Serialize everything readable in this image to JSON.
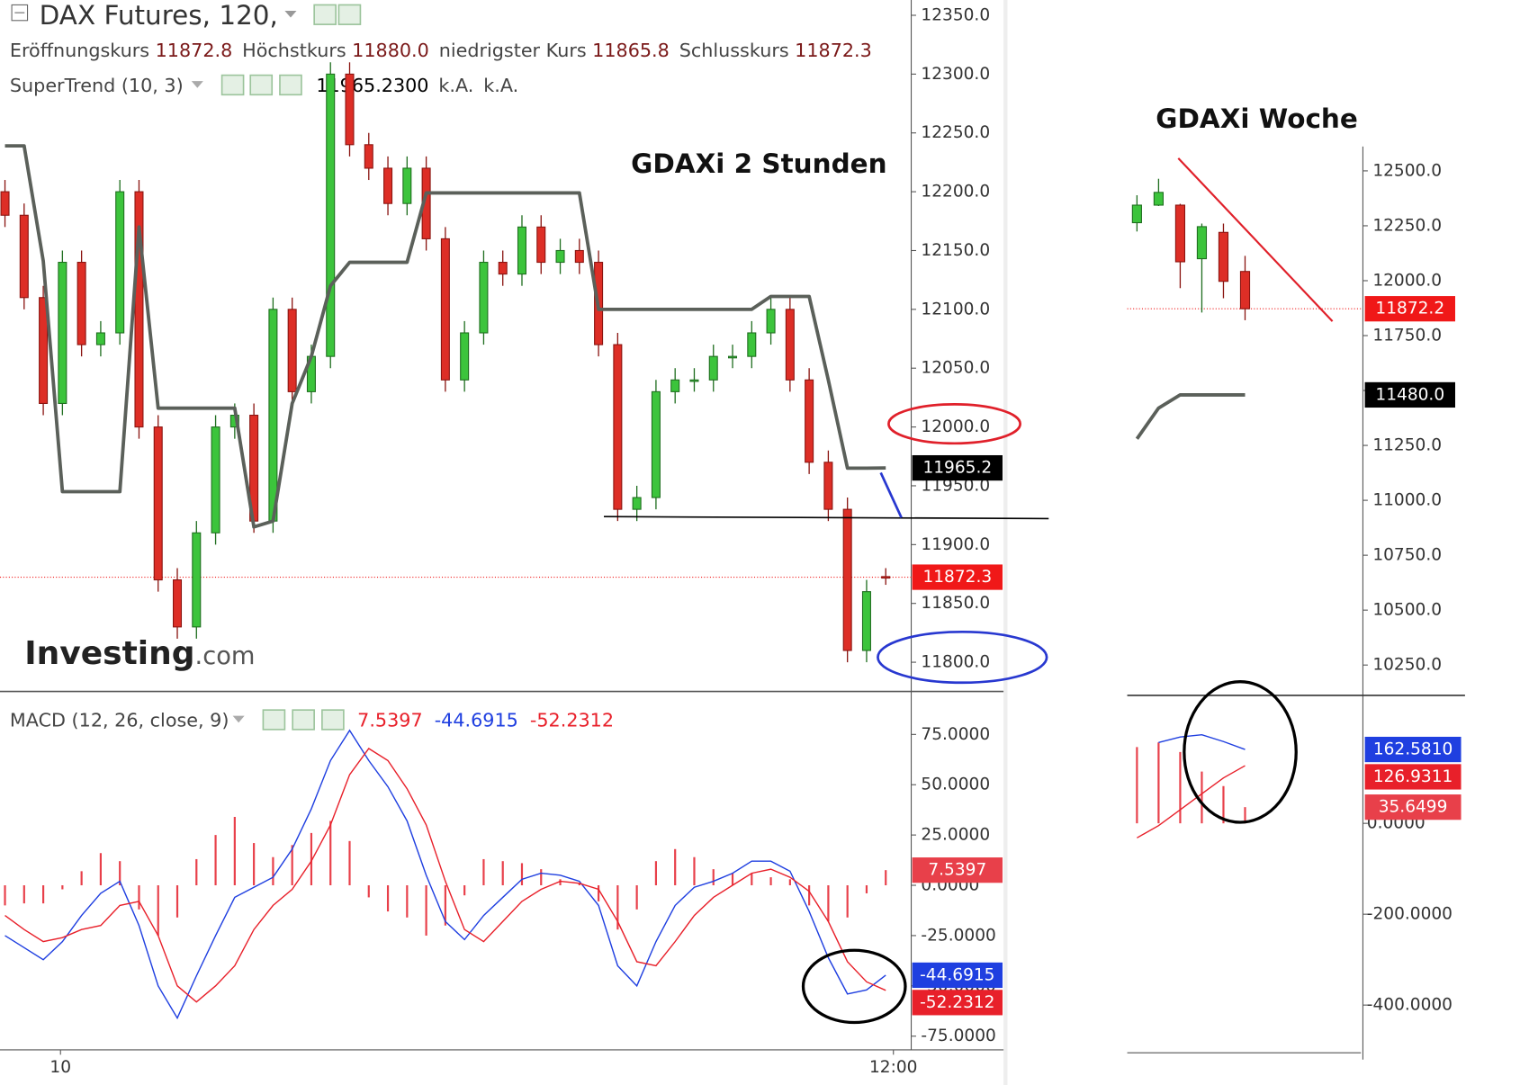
{
  "header": {
    "title": "DAX Futures, 120,",
    "ohlc": [
      {
        "label": "Eröffnungskurs",
        "value": "11872.8"
      },
      {
        "label": "Höchstkurs",
        "value": "11880.0"
      },
      {
        "label": "niedrigster Kurs",
        "value": "11865.8"
      },
      {
        "label": "Schlusskurs",
        "value": "11872.3"
      }
    ],
    "indicator": "SuperTrend (10, 3)",
    "indicator_values": [
      "11965.2300",
      "k.A.",
      "k.A."
    ],
    "macd_title": "MACD (12, 26, close, 9)"
  },
  "logo": {
    "brand": "Investing",
    "suffix": ".com"
  },
  "chart_data": [
    {
      "type": "candlestick",
      "title": "GDAXi 2 Stunden",
      "x": [
        0,
        1,
        2,
        3,
        4,
        5,
        6,
        7,
        8,
        9,
        10,
        11,
        12,
        13,
        14,
        15,
        16,
        17,
        18,
        19,
        20,
        21,
        22,
        23,
        24,
        25,
        26,
        27,
        28,
        29,
        30,
        31,
        32,
        33,
        34,
        35,
        36,
        37,
        38,
        39,
        40,
        41,
        42,
        43,
        44,
        45,
        46
      ],
      "open": [
        12200,
        12180,
        12110,
        12020,
        12140,
        12070,
        12080,
        12200,
        12000,
        11870,
        11830,
        11910,
        12000,
        12010,
        11920,
        12100,
        12030,
        12060,
        12300,
        12240,
        12220,
        12190,
        12220,
        12160,
        12040,
        12080,
        12140,
        12130,
        12170,
        12140,
        12150,
        12140,
        12070,
        11930,
        11940,
        12030,
        12040,
        12040,
        12060,
        12060,
        12080,
        12100,
        12040,
        11970,
        11930,
        11810,
        11872.8
      ],
      "high": [
        12210,
        12190,
        12120,
        12150,
        12150,
        12090,
        12210,
        12210,
        12010,
        11880,
        11920,
        12010,
        12020,
        12020,
        12110,
        12110,
        12070,
        12310,
        12310,
        12250,
        12230,
        12230,
        12230,
        12170,
        12090,
        12150,
        12150,
        12180,
        12180,
        12160,
        12160,
        12150,
        12080,
        11950,
        12040,
        12050,
        12050,
        12070,
        12070,
        12090,
        12110,
        12110,
        12050,
        11980,
        11940,
        11870,
        11880
      ],
      "low": [
        12170,
        12100,
        12010,
        12010,
        12060,
        12060,
        12070,
        11990,
        11860,
        11820,
        11820,
        11900,
        11990,
        11910,
        11910,
        12020,
        12020,
        12050,
        12230,
        12210,
        12180,
        12180,
        12150,
        12030,
        12030,
        12070,
        12120,
        12120,
        12130,
        12130,
        12130,
        12060,
        11920,
        11920,
        11930,
        12020,
        12030,
        12030,
        12050,
        12050,
        12070,
        12030,
        11960,
        11920,
        11800,
        11800,
        11865.8
      ],
      "close": [
        12180,
        12110,
        12020,
        12140,
        12070,
        12080,
        12200,
        12000,
        11870,
        11830,
        11910,
        12000,
        12010,
        11920,
        12100,
        12030,
        12060,
        12300,
        12240,
        12220,
        12190,
        12220,
        12160,
        12040,
        12080,
        12140,
        12130,
        12170,
        12140,
        12150,
        12140,
        12070,
        11930,
        11940,
        12030,
        12040,
        12040,
        12060,
        12060,
        12080,
        12100,
        12040,
        11970,
        11930,
        11810,
        11860,
        11872.3
      ],
      "up_color": "#3cc43c",
      "down_color": "#dd2e26",
      "up_border": "#1f6e1f",
      "down_border": "#8a1410",
      "overlay": {
        "color": "#5b605a",
        "values": [
          12239,
          12239,
          12141,
          11945,
          11945,
          11945,
          11945,
          12170,
          12016,
          12016,
          12016,
          12016,
          12016,
          11915,
          11920,
          12020,
          12060,
          12120,
          12140,
          12140,
          12140,
          12140,
          12199,
          12199,
          12199,
          12199,
          12199,
          12199,
          12199,
          12199,
          12199,
          12100,
          12100,
          12100,
          12100,
          12100,
          12100,
          12100,
          12100,
          12100,
          12111,
          12111,
          12111,
          12040,
          11965,
          11965,
          11965.2
        ]
      },
      "close_tag_color": "#f01818",
      "overlay_tag_color": "#000000",
      "xlim": [
        -0.26,
        47.33
      ],
      "ylim": [
        11776,
        12363
      ],
      "yticks": [
        {
          "value": 12350,
          "label": "12350.0"
        },
        {
          "value": 12300,
          "label": "12300.0"
        },
        {
          "value": 12250,
          "label": "12250.0"
        },
        {
          "value": 12200,
          "label": "12200.0"
        },
        {
          "value": 12150,
          "label": "12150.0"
        },
        {
          "value": 12100,
          "label": "12100.0"
        },
        {
          "value": 12050,
          "label": "12050.0"
        },
        {
          "value": 12000,
          "label": "12000.0"
        },
        {
          "value": 11950,
          "label": "11950.0"
        },
        {
          "value": 11900,
          "label": "11900.0"
        },
        {
          "value": 11850,
          "label": "11850.0"
        },
        {
          "value": 11800,
          "label": "11800.0"
        }
      ]
    },
    {
      "type": "macd",
      "x": [
        0,
        1,
        2,
        3,
        4,
        5,
        6,
        7,
        8,
        9,
        10,
        11,
        12,
        13,
        14,
        15,
        16,
        17,
        18,
        19,
        20,
        21,
        22,
        23,
        24,
        25,
        26,
        27,
        28,
        29,
        30,
        31,
        32,
        33,
        34,
        35,
        36,
        37,
        38,
        39,
        40,
        41,
        42,
        43,
        44,
        45,
        46
      ],
      "series": [
        {
          "kind": "histogram",
          "color": "#e8404a",
          "values": [
            -10,
            -9,
            -9,
            -2,
            7,
            16,
            12,
            -12,
            -25,
            -16,
            13,
            25,
            34,
            21,
            14,
            20,
            26,
            32,
            22,
            -6,
            -13,
            -16,
            -25,
            -20,
            -5,
            13,
            12,
            11,
            8,
            3,
            1,
            -8,
            -22,
            -12,
            12,
            18,
            14,
            8,
            6,
            6,
            4,
            3,
            -10,
            -18,
            -16,
            -4,
            7.5397
          ]
        },
        {
          "kind": "line",
          "color": "#1f3fe0",
          "values": [
            -25,
            -31,
            -37,
            -28,
            -15,
            -4,
            2,
            -20,
            -50,
            -66,
            -45,
            -25,
            -6,
            -1,
            4,
            18,
            38,
            62,
            77,
            62,
            49,
            32,
            5,
            -18,
            -27,
            -15,
            -6,
            3,
            6,
            5,
            2,
            -10,
            -40,
            -50,
            -28,
            -10,
            -1,
            2,
            6,
            12,
            12,
            7,
            -13,
            -36,
            -54,
            -52,
            -44.6915
          ]
        },
        {
          "kind": "line",
          "color": "#e8202a",
          "values": [
            -15,
            -22,
            -28,
            -26,
            -22,
            -20,
            -10,
            -8,
            -25,
            -50,
            -58,
            -50,
            -40,
            -22,
            -10,
            -2,
            12,
            30,
            55,
            68,
            62,
            48,
            30,
            2,
            -22,
            -28,
            -18,
            -8,
            -2,
            2,
            1,
            -2,
            -18,
            -38,
            -40,
            -28,
            -15,
            -6,
            0,
            6,
            8,
            4,
            -3,
            -18,
            -38,
            -48,
            -52.2312
          ]
        }
      ],
      "xlim": [
        -0.26,
        47.33
      ],
      "ylim": [
        -81.8,
        95.4
      ],
      "xticks": [
        {
          "value": 2.9,
          "label": "10"
        },
        {
          "value": 46.4,
          "label": "12:00"
        }
      ],
      "yticks": [
        {
          "value": 75,
          "label": "75.0000"
        },
        {
          "value": 50,
          "label": "50.0000"
        },
        {
          "value": 25,
          "label": "25.0000"
        },
        {
          "value": 0,
          "label": "0.0000"
        },
        {
          "value": -25,
          "label": "-25.0000"
        },
        {
          "value": -50,
          "label": "-50.0000"
        },
        {
          "value": -75,
          "label": "-75.0000"
        }
      ]
    },
    {
      "type": "candlestick",
      "title": "GDAXi Woche",
      "x": [
        0,
        1,
        2,
        3,
        4,
        5
      ],
      "open": [
        12264,
        12344,
        12344,
        12100,
        12220,
        12042
      ],
      "high": [
        12389,
        12464,
        12350,
        12260,
        12260,
        12113
      ],
      "low": [
        12224,
        12340,
        11966,
        11855,
        11920,
        11820
      ],
      "close": [
        12344,
        12402,
        12086,
        12246,
        11997,
        11872.2
      ],
      "up_color": "#3cc43c",
      "down_color": "#dd2e26",
      "up_border": "#1f6e1f",
      "down_border": "#8a1410",
      "overlay": {
        "color": "#5b605a",
        "values": [
          11280,
          11420,
          11480,
          11480,
          11480,
          11480
        ],
        "last_label": "11480.0"
      },
      "close_tag_color": "#f01818",
      "overlay_tag_color": "#000000",
      "xlim": [
        -0.45,
        10.45
      ],
      "ylim": [
        10112,
        12611
      ],
      "yticks": [
        {
          "value": 12500,
          "label": "12500.0"
        },
        {
          "value": 12250,
          "label": "12250.0"
        },
        {
          "value": 12000,
          "label": "12000.0"
        },
        {
          "value": 11750,
          "label": "11750.0"
        },
        {
          "value": 11500,
          "label": "11500.0"
        },
        {
          "value": 11250,
          "label": "11250.0"
        },
        {
          "value": 11000,
          "label": "11000.0"
        },
        {
          "value": 10750,
          "label": "10750.0"
        },
        {
          "value": 10500,
          "label": "10500.0"
        },
        {
          "value": 10250,
          "label": "10250.0"
        }
      ]
    },
    {
      "type": "macd",
      "x": [
        0,
        1,
        2,
        3,
        4,
        5
      ],
      "series": [
        {
          "kind": "histogram",
          "color": "#e8404a",
          "values": [
            168,
            178,
            157,
            114,
            82,
            35.6499
          ],
          "last_label": "35.6499"
        },
        {
          "kind": "line",
          "color": "#1f3fe0",
          "values": [
            null,
            178,
            190,
            195,
            180,
            162.581
          ],
          "last_label": "162.5810"
        },
        {
          "kind": "line",
          "color": "#e8202a",
          "values": [
            -32,
            -5,
            30,
            65,
            100,
            126.9311
          ],
          "last_label": "126.9311"
        }
      ],
      "xlim": [
        -0.45,
        10.45
      ],
      "ylim": [
        -505,
        279.6
      ],
      "yticks": [
        {
          "value": 0,
          "label": "0.0000"
        },
        {
          "value": -200,
          "label": "-200.0000"
        },
        {
          "value": -400,
          "label": "-400.0000"
        }
      ]
    }
  ]
}
